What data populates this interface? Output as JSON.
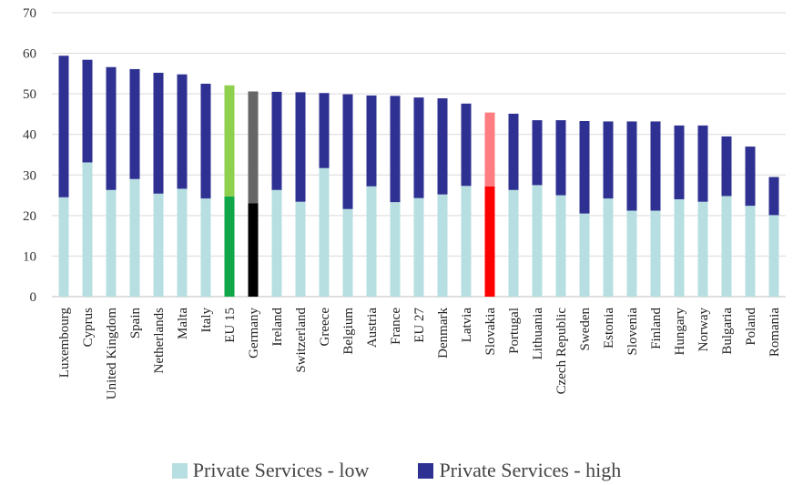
{
  "chart_data": {
    "type": "bar",
    "stacked": true,
    "title": "",
    "xlabel": "",
    "ylabel": "",
    "ylim": [
      0,
      70
    ],
    "yticks": [
      0,
      10,
      20,
      30,
      40,
      50,
      60,
      70
    ],
    "grid": true,
    "legend_position": "bottom",
    "categories": [
      "Luxembourg",
      "Cyprus",
      "United Kingdom",
      "Spain",
      "Netherlands",
      "Malta",
      "Italy",
      "EU 15",
      "Germany",
      "Ireland",
      "Switzerland",
      "Greece",
      "Belgium",
      "Austria",
      "France",
      "EU 27",
      "Denmark",
      "Latvia",
      "Slovakia",
      "Portugal",
      "Lithuania",
      "Czech Republic",
      "Sweden",
      "Estonia",
      "Slovenia",
      "Finland",
      "Hungary",
      "Norway",
      "Bulgaria",
      "Poland",
      "Romania"
    ],
    "series": [
      {
        "name": "Private Services - low",
        "color": "#b7dfe1",
        "values": [
          24.5,
          33.1,
          26.3,
          29.0,
          25.4,
          26.6,
          24.2,
          24.7,
          23.0,
          26.3,
          23.4,
          31.7,
          21.6,
          27.2,
          23.3,
          24.3,
          25.2,
          27.3,
          27.2,
          26.3,
          27.5,
          25.0,
          20.5,
          24.2,
          21.2,
          21.2,
          24.0,
          23.4,
          24.8,
          22.4,
          20.1
        ]
      },
      {
        "name": "Private Services - high",
        "color": "#2e3192",
        "values": [
          34.9,
          25.3,
          30.3,
          27.1,
          29.8,
          28.2,
          28.3,
          27.4,
          27.6,
          24.2,
          27.0,
          18.5,
          28.3,
          22.4,
          26.2,
          24.8,
          23.7,
          20.3,
          18.2,
          18.8,
          16.0,
          18.5,
          22.8,
          19.0,
          22.0,
          22.0,
          18.2,
          18.8,
          14.7,
          14.6,
          9.4
        ]
      }
    ],
    "highlights": {
      "EU 15": {
        "low_color": "#10a64a",
        "high_color": "#8fd14f"
      },
      "Germany": {
        "low_color": "#000000",
        "high_color": "#666666"
      },
      "Slovakia": {
        "low_color": "#ff0000",
        "high_color": "#ff7c80"
      }
    },
    "grid_color": "#d9d9d9",
    "axis_color": "#bfbfbf"
  }
}
